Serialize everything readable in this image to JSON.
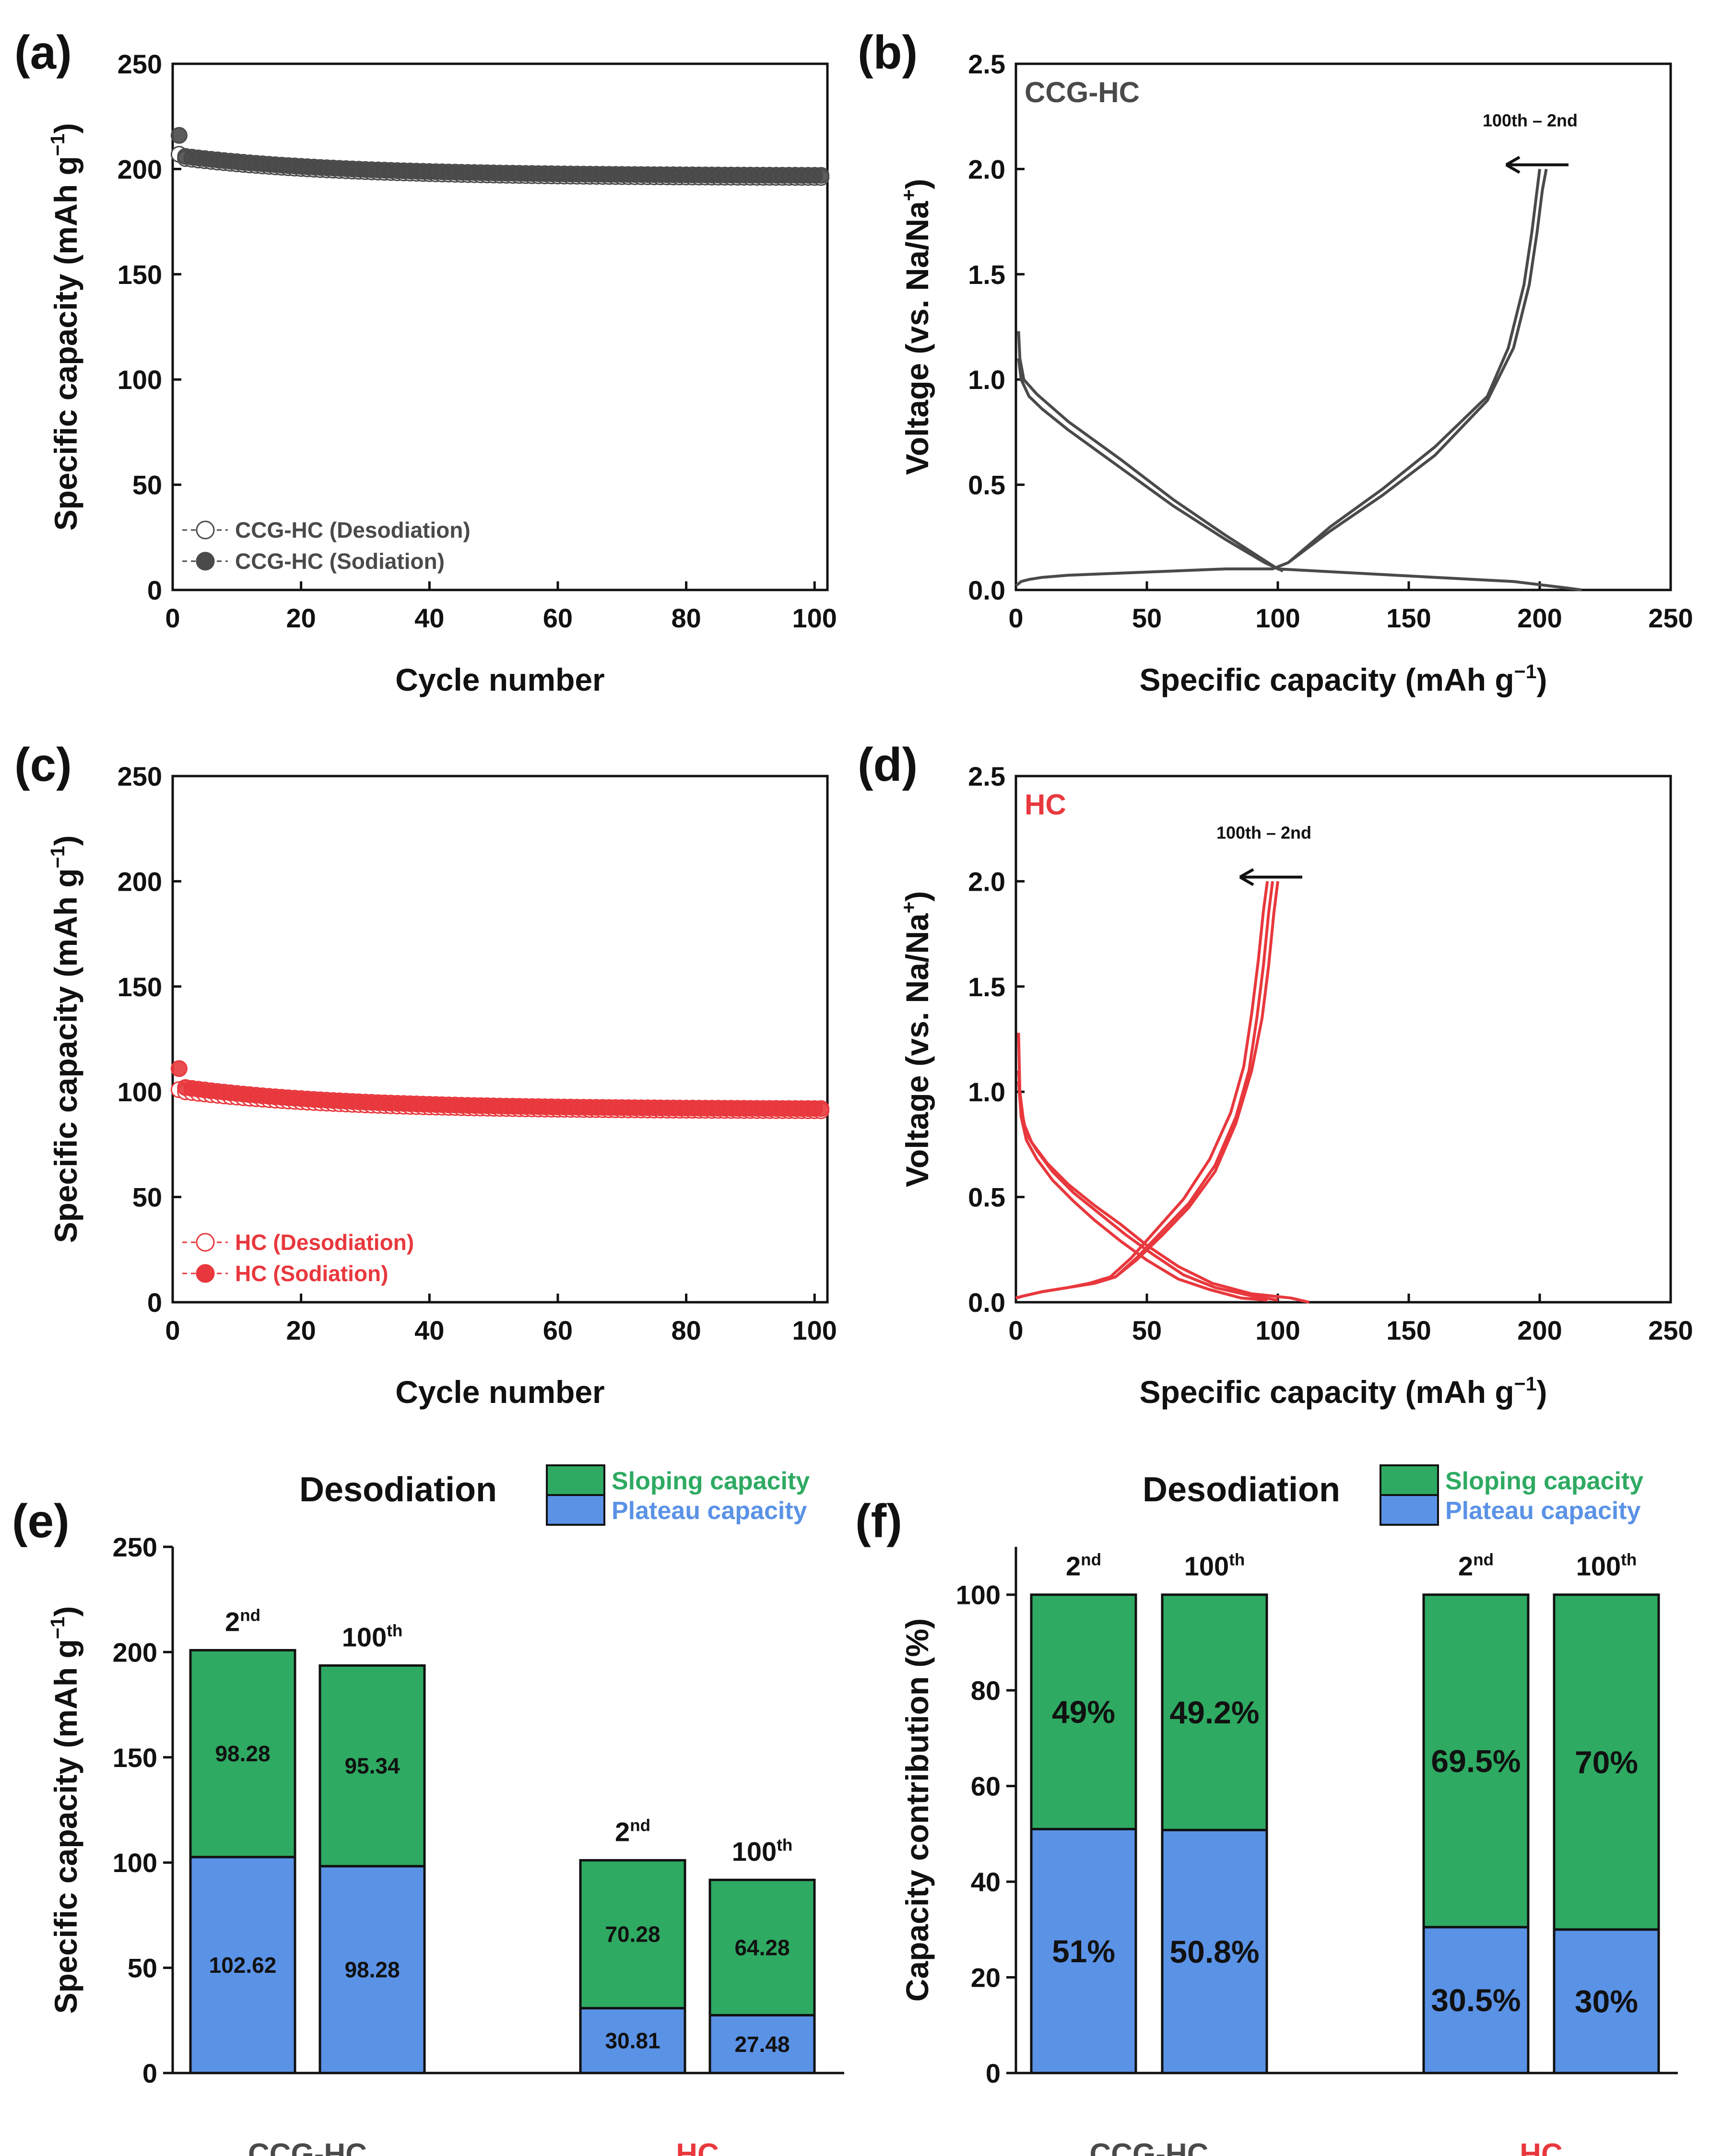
{
  "figure": {
    "colors": {
      "gray": "#4a4a4a",
      "red": "#e8383d",
      "green": "#2eaa62",
      "blue": "#5a92e6",
      "axis": "#111111"
    }
  },
  "chart_data": [
    {
      "panel": "a",
      "panel_label": "(a)",
      "type": "scatter",
      "xlabel": "Cycle number",
      "ylabel": "Specific capacity (mAh g⁻¹)",
      "xlim": [
        0,
        102
      ],
      "ylim": [
        0,
        250
      ],
      "xticks": [
        0,
        20,
        40,
        60,
        80,
        100
      ],
      "yticks": [
        0,
        50,
        100,
        150,
        200,
        250
      ],
      "color": "#4a4a4a",
      "legend_position": "bottom-left",
      "series": [
        {
          "name": "CCG-HC (Desodiation)",
          "marker": "open-circle",
          "first": 207,
          "start": 205,
          "end": 196
        },
        {
          "name": "CCG-HC (Sodiation)",
          "marker": "filled-circle",
          "first": 216,
          "start": 206,
          "end": 197
        }
      ]
    },
    {
      "panel": "b",
      "panel_label": "(b)",
      "type": "line",
      "xlabel": "Specific capacity (mAh g⁻¹)",
      "ylabel": "Voltage (vs. Na/Na⁺)",
      "xlim": [
        0,
        250
      ],
      "ylim": [
        0,
        2.5
      ],
      "xticks": [
        0,
        50,
        100,
        150,
        200,
        250
      ],
      "yticks": [
        0.0,
        0.5,
        1.0,
        1.5,
        2.0,
        2.5
      ],
      "inset_label": "CCG-HC",
      "arrow_label": "100th – 2nd",
      "color": "#4a4a4a",
      "series": [
        {
          "name": "charge-2nd",
          "x": [
            0,
            1,
            2,
            5,
            10,
            20,
            40,
            60,
            80,
            98,
            104,
            120,
            140,
            160,
            180,
            190,
            196,
            199,
            201,
            202.5
          ],
          "y": [
            0.02,
            0.03,
            0.04,
            0.05,
            0.06,
            0.07,
            0.08,
            0.09,
            0.1,
            0.1,
            0.13,
            0.28,
            0.45,
            0.64,
            0.9,
            1.15,
            1.45,
            1.7,
            1.9,
            2.0
          ]
        },
        {
          "name": "charge-100th",
          "x": [
            104,
            120,
            140,
            160,
            180,
            188,
            194,
            197,
            199,
            200
          ],
          "y": [
            0.13,
            0.3,
            0.48,
            0.68,
            0.92,
            1.15,
            1.45,
            1.7,
            1.9,
            2.0
          ]
        },
        {
          "name": "discharge-2nd",
          "x": [
            1,
            1.5,
            3,
            8,
            20,
            40,
            60,
            80,
            95,
            100,
            130,
            160,
            190,
            210,
            216
          ],
          "y": [
            1.23,
            1.1,
            1.0,
            0.93,
            0.8,
            0.62,
            0.43,
            0.26,
            0.14,
            0.1,
            0.08,
            0.06,
            0.04,
            0.01,
            0.0
          ]
        },
        {
          "name": "discharge-100th",
          "x": [
            1,
            2,
            5,
            10,
            20,
            40,
            60,
            80,
            95,
            102
          ],
          "y": [
            1.1,
            1.0,
            0.92,
            0.86,
            0.76,
            0.58,
            0.4,
            0.24,
            0.13,
            0.09
          ]
        }
      ]
    },
    {
      "panel": "c",
      "panel_label": "(c)",
      "type": "scatter",
      "xlabel": "Cycle number",
      "ylabel": "Specific capacity (mAh g⁻¹)",
      "xlim": [
        0,
        102
      ],
      "ylim": [
        0,
        250
      ],
      "xticks": [
        0,
        20,
        40,
        60,
        80,
        100
      ],
      "yticks": [
        0,
        50,
        100,
        150,
        200,
        250
      ],
      "color": "#e8383d",
      "legend_position": "bottom-left",
      "series": [
        {
          "name": "HC (Desodiation)",
          "marker": "open-circle",
          "first": 101,
          "start": 100,
          "end": 91
        },
        {
          "name": "HC (Sodiation)",
          "marker": "filled-circle",
          "first": 111,
          "start": 102,
          "end": 92
        }
      ]
    },
    {
      "panel": "d",
      "panel_label": "(d)",
      "type": "line",
      "xlabel": "Specific capacity (mAh g⁻¹)",
      "ylabel": "Voltage (vs. Na/Na⁺)",
      "xlim": [
        0,
        250
      ],
      "ylim": [
        0,
        2.5
      ],
      "xticks": [
        0,
        50,
        100,
        150,
        200,
        250
      ],
      "yticks": [
        0.0,
        0.5,
        1.0,
        1.5,
        2.0,
        2.5
      ],
      "inset_label": "HC",
      "arrow_label": "100th – 2nd",
      "color": "#e8383d",
      "series": [
        {
          "name": "charge-2nd",
          "x": [
            0,
            3,
            10,
            20,
            30,
            38,
            46,
            56,
            66,
            76,
            84,
            90,
            94,
            96.5,
            98.5,
            100
          ],
          "y": [
            0.02,
            0.03,
            0.05,
            0.07,
            0.09,
            0.12,
            0.2,
            0.32,
            0.45,
            0.62,
            0.85,
            1.1,
            1.35,
            1.6,
            1.85,
            2.0
          ]
        },
        {
          "name": "charge-mid",
          "x": [
            0,
            3,
            10,
            20,
            30,
            38,
            46,
            56,
            66,
            76,
            84,
            89,
            92,
            94.5,
            96.5,
            98
          ],
          "y": [
            0.02,
            0.03,
            0.05,
            0.07,
            0.09,
            0.12,
            0.21,
            0.34,
            0.47,
            0.65,
            0.88,
            1.1,
            1.35,
            1.6,
            1.85,
            2.0
          ]
        },
        {
          "name": "charge-100th",
          "x": [
            0,
            3,
            10,
            20,
            28,
            36,
            44,
            54,
            64,
            74,
            82,
            87,
            90,
            92.5,
            94.5,
            96
          ],
          "y": [
            0.02,
            0.03,
            0.05,
            0.07,
            0.09,
            0.12,
            0.21,
            0.35,
            0.49,
            0.68,
            0.9,
            1.12,
            1.37,
            1.62,
            1.86,
            2.0
          ]
        },
        {
          "name": "discharge-2nd",
          "x": [
            1,
            1.5,
            3,
            6,
            12,
            20,
            30,
            40,
            50,
            62,
            75,
            90,
            105,
            112
          ],
          "y": [
            1.28,
            1.0,
            0.85,
            0.76,
            0.66,
            0.56,
            0.46,
            0.37,
            0.27,
            0.17,
            0.09,
            0.04,
            0.02,
            0.0
          ]
        },
        {
          "name": "discharge-mid",
          "x": [
            1,
            2,
            4,
            8,
            14,
            22,
            32,
            42,
            52,
            64,
            76,
            90,
            100
          ],
          "y": [
            1.1,
            0.92,
            0.8,
            0.72,
            0.62,
            0.52,
            0.42,
            0.32,
            0.23,
            0.13,
            0.07,
            0.03,
            0.01
          ]
        },
        {
          "name": "discharge-100th",
          "x": [
            1,
            2,
            4,
            8,
            14,
            22,
            30,
            40,
            50,
            62,
            74,
            86,
            96
          ],
          "y": [
            1.05,
            0.88,
            0.77,
            0.68,
            0.58,
            0.48,
            0.39,
            0.29,
            0.2,
            0.11,
            0.06,
            0.02,
            0.01
          ]
        }
      ]
    },
    {
      "panel": "e",
      "panel_label": "(e)",
      "type": "bar",
      "title": "Desodiation",
      "ylabel": "Specific capacity (mAh g⁻¹)",
      "ylim": [
        0,
        250
      ],
      "yticks": [
        0,
        50,
        100,
        150,
        200,
        250
      ],
      "groups": [
        {
          "name": "CCG-HC",
          "color": "#4a4a4a"
        },
        {
          "name": "HC",
          "color": "#e8383d"
        }
      ],
      "legend": [
        "Sloping capacity",
        "Plateau capacity"
      ],
      "bars": [
        {
          "group": "CCG-HC",
          "cycle": "2nd",
          "plateau": 102.62,
          "sloping": 98.28,
          "plateau_label": "102.62",
          "sloping_label": "98.28"
        },
        {
          "group": "CCG-HC",
          "cycle": "100th",
          "plateau": 98.28,
          "sloping": 95.34,
          "plateau_label": "98.28",
          "sloping_label": "95.34"
        },
        {
          "group": "HC",
          "cycle": "2nd",
          "plateau": 30.81,
          "sloping": 70.28,
          "plateau_label": "30.81",
          "sloping_label": "70.28"
        },
        {
          "group": "HC",
          "cycle": "100th",
          "plateau": 27.48,
          "sloping": 64.28,
          "plateau_label": "27.48",
          "sloping_label": "64.28"
        }
      ]
    },
    {
      "panel": "f",
      "panel_label": "(f)",
      "type": "bar",
      "title": "Desodiation",
      "ylabel": "Capacity contribution (%)",
      "ylim": [
        0,
        110
      ],
      "yticks": [
        0,
        20,
        40,
        60,
        80,
        100
      ],
      "groups": [
        {
          "name": "CCG-HC",
          "color": "#4a4a4a"
        },
        {
          "name": "HC",
          "color": "#e8383d"
        }
      ],
      "legend": [
        "Sloping capacity",
        "Plateau capacity"
      ],
      "bars": [
        {
          "group": "CCG-HC",
          "cycle": "2nd",
          "plateau": 51,
          "sloping": 49,
          "plateau_label": "51%",
          "sloping_label": "49%"
        },
        {
          "group": "CCG-HC",
          "cycle": "100th",
          "plateau": 50.8,
          "sloping": 49.2,
          "plateau_label": "50.8%",
          "sloping_label": "49.2%"
        },
        {
          "group": "HC",
          "cycle": "2nd",
          "plateau": 30.5,
          "sloping": 69.5,
          "plateau_label": "30.5%",
          "sloping_label": "69.5%"
        },
        {
          "group": "HC",
          "cycle": "100th",
          "plateau": 30,
          "sloping": 70,
          "plateau_label": "30%",
          "sloping_label": "70%"
        }
      ]
    }
  ]
}
